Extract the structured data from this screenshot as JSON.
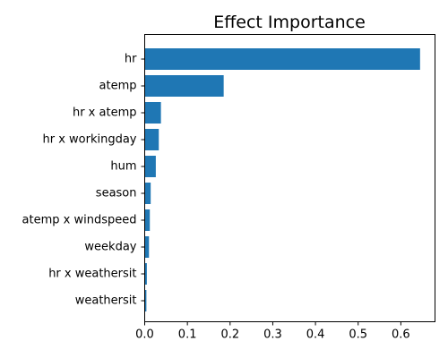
{
  "chart_data": {
    "type": "bar",
    "orientation": "horizontal",
    "title": "Effect Importance",
    "xlabel": "",
    "ylabel": "",
    "categories": [
      "hr",
      "atemp",
      "hr x atemp",
      "hr x workingday",
      "hum",
      "season",
      "atemp x windspeed",
      "weekday",
      "hr x weathersit",
      "weathersit"
    ],
    "values": [
      0.645,
      0.185,
      0.038,
      0.033,
      0.026,
      0.014,
      0.012,
      0.01,
      0.005,
      0.004
    ],
    "xlim": [
      0.0,
      0.68
    ],
    "xticks": [
      0.0,
      0.1,
      0.2,
      0.3,
      0.4,
      0.5,
      0.6
    ],
    "xtick_labels": [
      "0.0",
      "0.1",
      "0.2",
      "0.3",
      "0.4",
      "0.5",
      "0.6"
    ],
    "bar_color": "#1f77b4",
    "grid": false,
    "legend": null
  }
}
